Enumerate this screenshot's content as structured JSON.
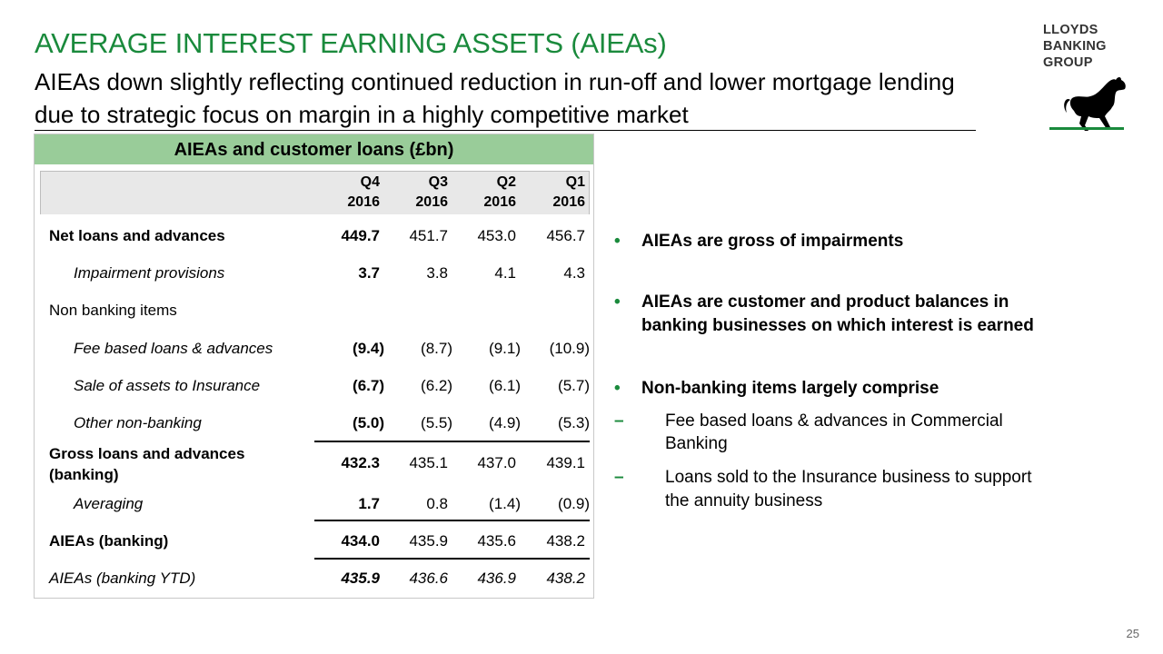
{
  "header": {
    "title": "AVERAGE INTEREST EARNING ASSETS (AIEAs)",
    "subtitle": "AIEAs down slightly reflecting continued reduction in run-off and lower mortgage lending due to strategic focus on margin in a highly competitive market"
  },
  "logo": {
    "line1": "LLOYDS",
    "line2": "BANKING",
    "line3": "GROUP",
    "brand_color": "#1a8a3c"
  },
  "table": {
    "title": "AIEAs and customer loans (£bn)",
    "columns": [
      {
        "q": "Q4",
        "year": "2016"
      },
      {
        "q": "Q3",
        "year": "2016"
      },
      {
        "q": "Q2",
        "year": "2016"
      },
      {
        "q": "Q1",
        "year": "2016"
      }
    ],
    "rows": [
      {
        "label": "Net loans and advances",
        "values": [
          "449.7",
          "451.7",
          "453.0",
          "456.7"
        ]
      },
      {
        "label": "Impairment provisions",
        "values": [
          "3.7",
          "3.8",
          "4.1",
          "4.3"
        ]
      },
      {
        "label": "Non banking items",
        "values": []
      },
      {
        "label": "Fee based loans & advances",
        "values": [
          "(9.4)",
          "(8.7)",
          "(9.1)",
          "(10.9)"
        ]
      },
      {
        "label": "Sale of assets to Insurance",
        "values": [
          "(6.7)",
          "(6.2)",
          "(6.1)",
          "(5.7)"
        ]
      },
      {
        "label": "Other non-banking",
        "values": [
          "(5.0)",
          "(5.5)",
          "(4.9)",
          "(5.3)"
        ]
      },
      {
        "label_line1": "Gross loans and advances",
        "label_line2": "(banking)",
        "values": [
          "432.3",
          "435.1",
          "437.0",
          "439.1"
        ]
      },
      {
        "label": "Averaging",
        "values": [
          "1.7",
          "0.8",
          "(1.4)",
          "(0.9)"
        ]
      },
      {
        "label": "AIEAs (banking)",
        "values": [
          "434.0",
          "435.9",
          "435.6",
          "438.2"
        ]
      },
      {
        "label": "AIEAs (banking YTD)",
        "values": [
          "435.9",
          "436.6",
          "436.9",
          "438.2"
        ]
      }
    ]
  },
  "bullets": {
    "b1": "AIEAs are gross of impairments",
    "b2_line1": "AIEAs are customer and product balances in",
    "b2_line2": "banking businesses on which interest is earned",
    "b3": "Non-banking items largely comprise",
    "sub1_line1": "Fee based loans & advances in Commercial",
    "sub1_line2": "Banking",
    "sub2_line1": "Loans sold to the Insurance business to support",
    "sub2_line2": "the annuity business",
    "bullet_char": "•",
    "dash_char": "–"
  },
  "page_number": "25"
}
